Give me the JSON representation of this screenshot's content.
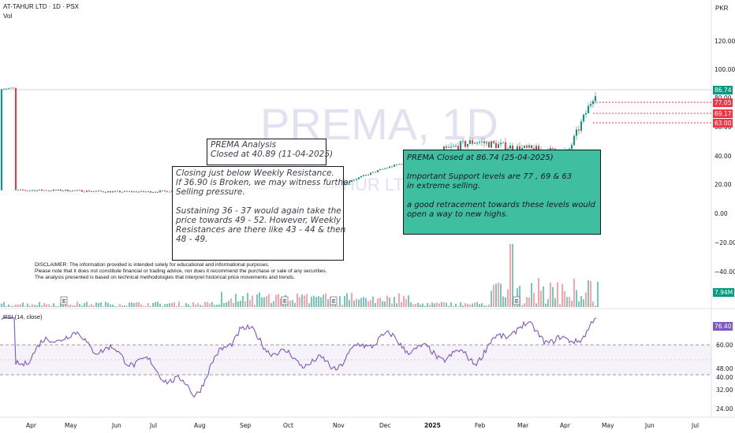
{
  "header": {
    "symbol_line": "AT-TAHUR LTD · 1D · PSX",
    "volume_label": "Vol",
    "currency": "PKR",
    "rsi_label": "RSI (14, close)"
  },
  "watermark": {
    "main": "PREMA, 1D",
    "sub": "AT-TAHUR LTD"
  },
  "price_axis": {
    "ticks": [
      "120.00",
      "100.00",
      "80.00",
      "60.00",
      "40.00",
      "20.00",
      "0.00",
      "−20.00",
      "−40.00"
    ]
  },
  "price_tags": [
    {
      "value": "86.74",
      "color": "#089981"
    },
    {
      "value": "77.05",
      "color": "#f23645"
    },
    {
      "value": "69.17",
      "color": "#f23645"
    },
    {
      "value": "63.00",
      "color": "#f23645"
    }
  ],
  "volume_tag": {
    "value": "7.94M",
    "color": "#089981"
  },
  "rsi_axis": {
    "ticks": [
      "60.00",
      "48.00",
      "40.00",
      "32.00",
      "24.00"
    ]
  },
  "rsi_tag": {
    "value": "76.40",
    "color": "#7e57c2"
  },
  "time_axis": [
    "Apr",
    "May",
    "Jun",
    "Jul",
    "Aug",
    "Sep",
    "Oct",
    "Nov",
    "Dec",
    "2025",
    "Feb",
    "Mar",
    "Apr",
    "May",
    "Jun",
    "Jul"
  ],
  "notes": {
    "title": [
      "PREMA Analysis",
      "Closed at 40.89 (11-04-2025)"
    ],
    "analysis": [
      "Closing just below Weekly Resistance.",
      "If 36.90 is Broken, we may witness further",
      "Selling pressure.",
      "",
      "Sustaining 36 - 37 would again take the",
      "price towards 49 - 52. However, Weekly",
      "Resistances are there like 43 - 44 & then",
      "48 - 49."
    ],
    "update": [
      "PREMA Closed at 86.74 (25-04-2025)",
      "",
      "Important Support levels are 77 , 69 & 63",
      "in extreme selling.",
      "",
      "a good retracement towards these levels would",
      "open a way to new highs."
    ]
  },
  "disclaimer": [
    "DISCLAIMER: The information provided is intended solely for educational and informational purposes.",
    "Please note that it does not constitute financial or trading advice, nor does it recommend the purchase or sale of any securities.",
    "The analysis presented is based on technical methodologies that interpret historical price movements and trends."
  ],
  "event_marker": "E",
  "chart_data": [
    {
      "type": "line",
      "title": "AT-TAHUR LTD · 1D · PSX",
      "ylabel": "PKR",
      "ylim": [
        -50,
        125
      ],
      "x": [
        "Apr",
        "May",
        "Jun",
        "Jul",
        "Aug",
        "Sep",
        "Oct",
        "Nov",
        "Dec",
        "2025",
        "Feb",
        "Mar",
        "Apr",
        "Apr-25"
      ],
      "series": [
        {
          "values": [
            16,
            16,
            15,
            15,
            16,
            17,
            17,
            18,
            30,
            40,
            50,
            45,
            42,
            86.74
          ]
        }
      ],
      "support_levels": [
        77.05,
        69.17,
        63.0
      ],
      "last_close": 86.74,
      "grid": false
    },
    {
      "type": "bar",
      "title": "Vol",
      "last_volume": "7.94M",
      "grid": false
    },
    {
      "type": "line",
      "title": "RSI (14, close)",
      "ylim": [
        22,
        78
      ],
      "band": [
        40,
        60
      ],
      "x": [
        "Apr",
        "May",
        "Jun",
        "Jul",
        "Aug",
        "Sep",
        "Oct",
        "Nov",
        "Dec",
        "2025",
        "Feb",
        "Mar",
        "Apr",
        "Apr-25"
      ],
      "series": [
        {
          "values": [
            47,
            68,
            55,
            46,
            28,
            72,
            52,
            46,
            66,
            55,
            51,
            73,
            60,
            76.4
          ]
        }
      ],
      "last_value": 76.4
    }
  ]
}
